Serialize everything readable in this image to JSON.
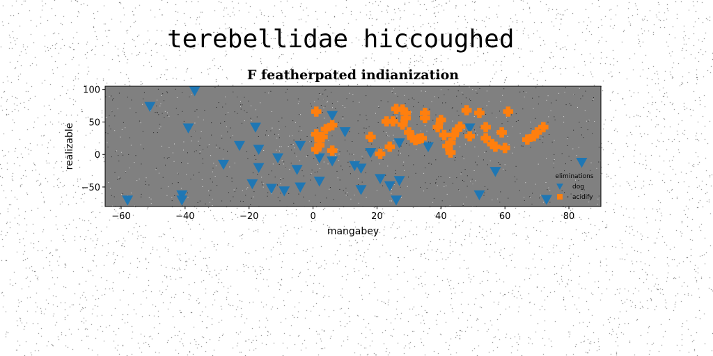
{
  "figure": {
    "suptitle": "terebellidae hiccoughed"
  },
  "colors": {
    "background": "#ffffff",
    "plot_bg": "#808080",
    "dog": "#1f77b4",
    "acidify": "#ff7f0e"
  },
  "chart_data": {
    "type": "scatter",
    "title": "F featherpated indianization",
    "xlabel": "mangabey",
    "ylabel": "realizable",
    "xlim": [
      -65,
      90
    ],
    "ylim": [
      -80,
      105
    ],
    "xticks": [
      -60,
      -40,
      -20,
      0,
      20,
      40,
      60,
      80
    ],
    "yticks": [
      -50,
      0,
      50,
      100
    ],
    "grid": false,
    "legend": {
      "title": "eliminations",
      "position": "lower right"
    },
    "series": [
      {
        "name": "dog",
        "marker": "triangle-down",
        "color": "#1f77b4",
        "points": [
          [
            -58,
            -70
          ],
          [
            -51,
            74
          ],
          [
            -41,
            -62
          ],
          [
            -41,
            -70
          ],
          [
            -39,
            41
          ],
          [
            -37,
            98
          ],
          [
            -28,
            -15
          ],
          [
            -23,
            14
          ],
          [
            -19,
            -45
          ],
          [
            -18,
            42
          ],
          [
            -17,
            8
          ],
          [
            -17,
            -20
          ],
          [
            -13,
            -52
          ],
          [
            -11,
            -5
          ],
          [
            -9,
            -56
          ],
          [
            -5,
            -23
          ],
          [
            -4,
            14
          ],
          [
            -4,
            -50
          ],
          [
            2,
            -41
          ],
          [
            2,
            -5
          ],
          [
            6,
            -10
          ],
          [
            6,
            60
          ],
          [
            10,
            35
          ],
          [
            13,
            -17
          ],
          [
            15,
            -21
          ],
          [
            15,
            -54
          ],
          [
            18,
            3
          ],
          [
            21,
            -37
          ],
          [
            24,
            -48
          ],
          [
            26,
            -70
          ],
          [
            27,
            -40
          ],
          [
            27,
            18
          ],
          [
            36,
            12
          ],
          [
            49,
            41
          ],
          [
            52,
            -62
          ],
          [
            57,
            -26
          ],
          [
            73,
            -69
          ],
          [
            84,
            -12
          ]
        ]
      },
      {
        "name": "acidify",
        "marker": "x-filled",
        "color": "#ff7f0e",
        "points": [
          [
            1,
            66
          ],
          [
            1,
            31
          ],
          [
            1,
            8
          ],
          [
            2,
            22
          ],
          [
            2,
            14
          ],
          [
            3,
            27
          ],
          [
            4,
            39
          ],
          [
            6,
            45
          ],
          [
            6,
            6
          ],
          [
            18,
            27
          ],
          [
            21,
            1
          ],
          [
            23,
            51
          ],
          [
            25,
            51
          ],
          [
            24,
            12
          ],
          [
            26,
            70
          ],
          [
            28,
            69
          ],
          [
            28,
            46
          ],
          [
            29,
            56
          ],
          [
            29,
            64
          ],
          [
            30,
            34
          ],
          [
            31,
            26
          ],
          [
            32,
            22
          ],
          [
            33,
            24
          ],
          [
            34,
            25
          ],
          [
            35,
            64
          ],
          [
            35,
            56
          ],
          [
            39,
            42
          ],
          [
            40,
            53
          ],
          [
            41,
            30
          ],
          [
            42,
            13
          ],
          [
            43,
            3
          ],
          [
            43,
            18
          ],
          [
            44,
            30
          ],
          [
            45,
            38
          ],
          [
            46,
            43
          ],
          [
            48,
            68
          ],
          [
            49,
            28
          ],
          [
            52,
            64
          ],
          [
            54,
            42
          ],
          [
            54,
            25
          ],
          [
            56,
            16
          ],
          [
            57,
            12
          ],
          [
            59,
            34
          ],
          [
            60,
            10
          ],
          [
            61,
            66
          ],
          [
            67,
            23
          ],
          [
            69,
            28
          ],
          [
            70,
            34
          ],
          [
            72,
            42
          ]
        ]
      }
    ]
  }
}
